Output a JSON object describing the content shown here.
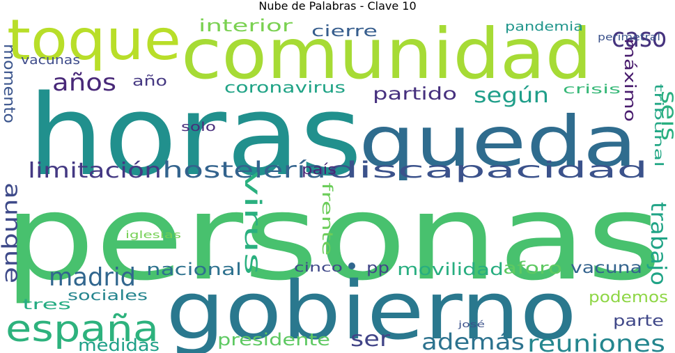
{
  "title": "Nube de Palabras - Clave 10",
  "words": [
    {
      "text": "personas",
      "color": "#48c16e"
    },
    {
      "text": "horas",
      "color": "#21908d"
    },
    {
      "text": "comunidad",
      "color": "#a6db35"
    },
    {
      "text": "gobierno",
      "color": "#2a788e"
    },
    {
      "text": "queda",
      "color": "#2f6c8e"
    },
    {
      "text": "toque",
      "color": "#b8de29"
    },
    {
      "text": "españa",
      "color": "#2db27d"
    },
    {
      "text": "discapacidad",
      "color": "#3b528b"
    },
    {
      "text": "hostelería",
      "color": "#33638d"
    },
    {
      "text": "limitación",
      "color": "#443983"
    },
    {
      "text": "reuniones",
      "color": "#24868e"
    },
    {
      "text": "además",
      "color": "#2c728e"
    },
    {
      "text": "caso",
      "color": "#46337e"
    },
    {
      "text": "según",
      "color": "#1f9e89"
    },
    {
      "text": "madrid",
      "color": "#31668e"
    },
    {
      "text": "años",
      "color": "#482878"
    },
    {
      "text": "aunque",
      "color": "#3e4a89"
    },
    {
      "text": "trabajo",
      "color": "#20a486"
    },
    {
      "text": "virus",
      "color": "#2ab07f"
    },
    {
      "text": "ser",
      "color": "#414487"
    },
    {
      "text": "seis",
      "color": "#29af7f"
    },
    {
      "text": "partido",
      "color": "#46307e"
    },
    {
      "text": "movilidad",
      "color": "#28ae80"
    },
    {
      "text": "vacuna",
      "color": "#33638d"
    },
    {
      "text": "nacional",
      "color": "#2d718e"
    },
    {
      "text": "aforo",
      "color": "#5ec962"
    },
    {
      "text": "presidente",
      "color": "#5ec962"
    },
    {
      "text": "podemos",
      "color": "#8ed645"
    },
    {
      "text": "medidas",
      "color": "#1fa088"
    },
    {
      "text": "interior",
      "color": "#7ad151"
    },
    {
      "text": "cierre",
      "color": "#365d8d"
    },
    {
      "text": "coronavirus",
      "color": "#20a386"
    },
    {
      "text": "máximo",
      "color": "#481b6d"
    },
    {
      "text": "momento",
      "color": "#3a548c"
    },
    {
      "text": "parte",
      "color": "#3f4788"
    },
    {
      "text": "frente",
      "color": "#6ccd5a"
    },
    {
      "text": "país",
      "color": "#482475"
    },
    {
      "text": "año",
      "color": "#453882"
    },
    {
      "text": "pandemia",
      "color": "#1f958b"
    },
    {
      "text": "tribunal",
      "color": "#22a785"
    },
    {
      "text": "crisis",
      "color": "#37b878"
    },
    {
      "text": "sociales",
      "color": "#25858e"
    },
    {
      "text": "tres",
      "color": "#25ac82"
    },
    {
      "text": "vacunas",
      "color": "#3e4c8a"
    },
    {
      "text": "solo",
      "color": "#472d7b"
    },
    {
      "text": "pp",
      "color": "#414487"
    },
    {
      "text": "cinco",
      "color": "#3f4889"
    },
    {
      "text": "perimetral",
      "color": "#3b528b"
    },
    {
      "text": "iglesias",
      "color": "#75d054"
    },
    {
      "text": "josé",
      "color": "#3b528b"
    }
  ]
}
